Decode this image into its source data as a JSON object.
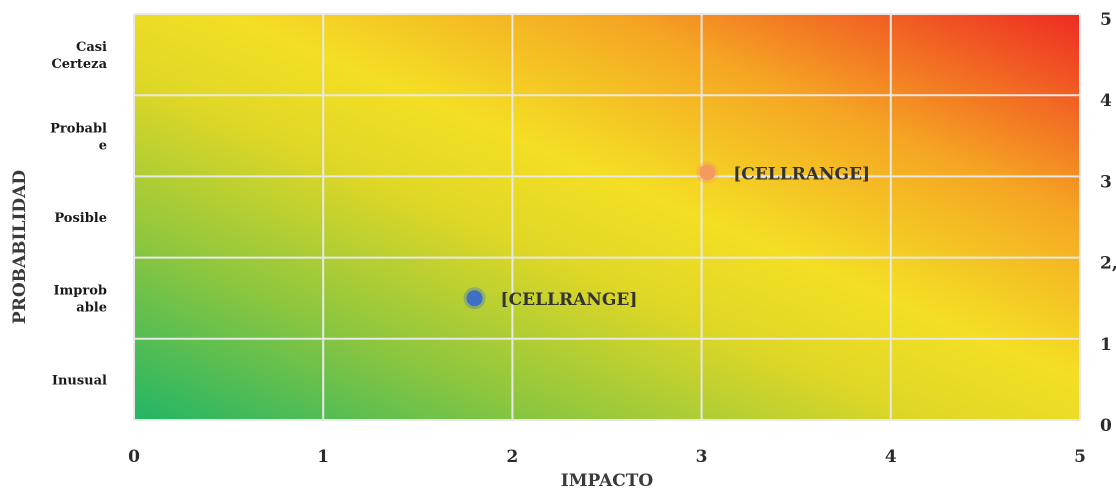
{
  "chart_data": {
    "type": "scatter",
    "xlabel": "IMPACTO",
    "ylabel": "PROBABILIDAD",
    "xlim": [
      0,
      5
    ],
    "ylim": [
      0,
      5
    ],
    "x_ticks": [
      "0",
      "1",
      "2",
      "3",
      "4",
      "5"
    ],
    "y_ticks_right": [
      "0",
      "1",
      "2,",
      "3",
      "4",
      "5"
    ],
    "y_category_labels": [
      [
        "Inusual"
      ],
      [
        "Improb",
        "able"
      ],
      [
        "Posible"
      ],
      [
        "Probabl",
        "e"
      ],
      [
        "Casi",
        "Certeza"
      ]
    ],
    "grid": true,
    "background": "risk heatmap gradient green (low) to red (high)",
    "colors": {
      "low": "#22b566",
      "mid": "#f4df24",
      "high": "#ee2b23",
      "grid": "#e8e8e8"
    },
    "points": [
      {
        "x": 1.8,
        "y": 1.5,
        "label": "[CELLRANGE]",
        "color": "#3d6fc4"
      },
      {
        "x": 3.03,
        "y": 3.05,
        "label": "[CELLRANGE]",
        "color": "#f59a5e"
      }
    ]
  }
}
